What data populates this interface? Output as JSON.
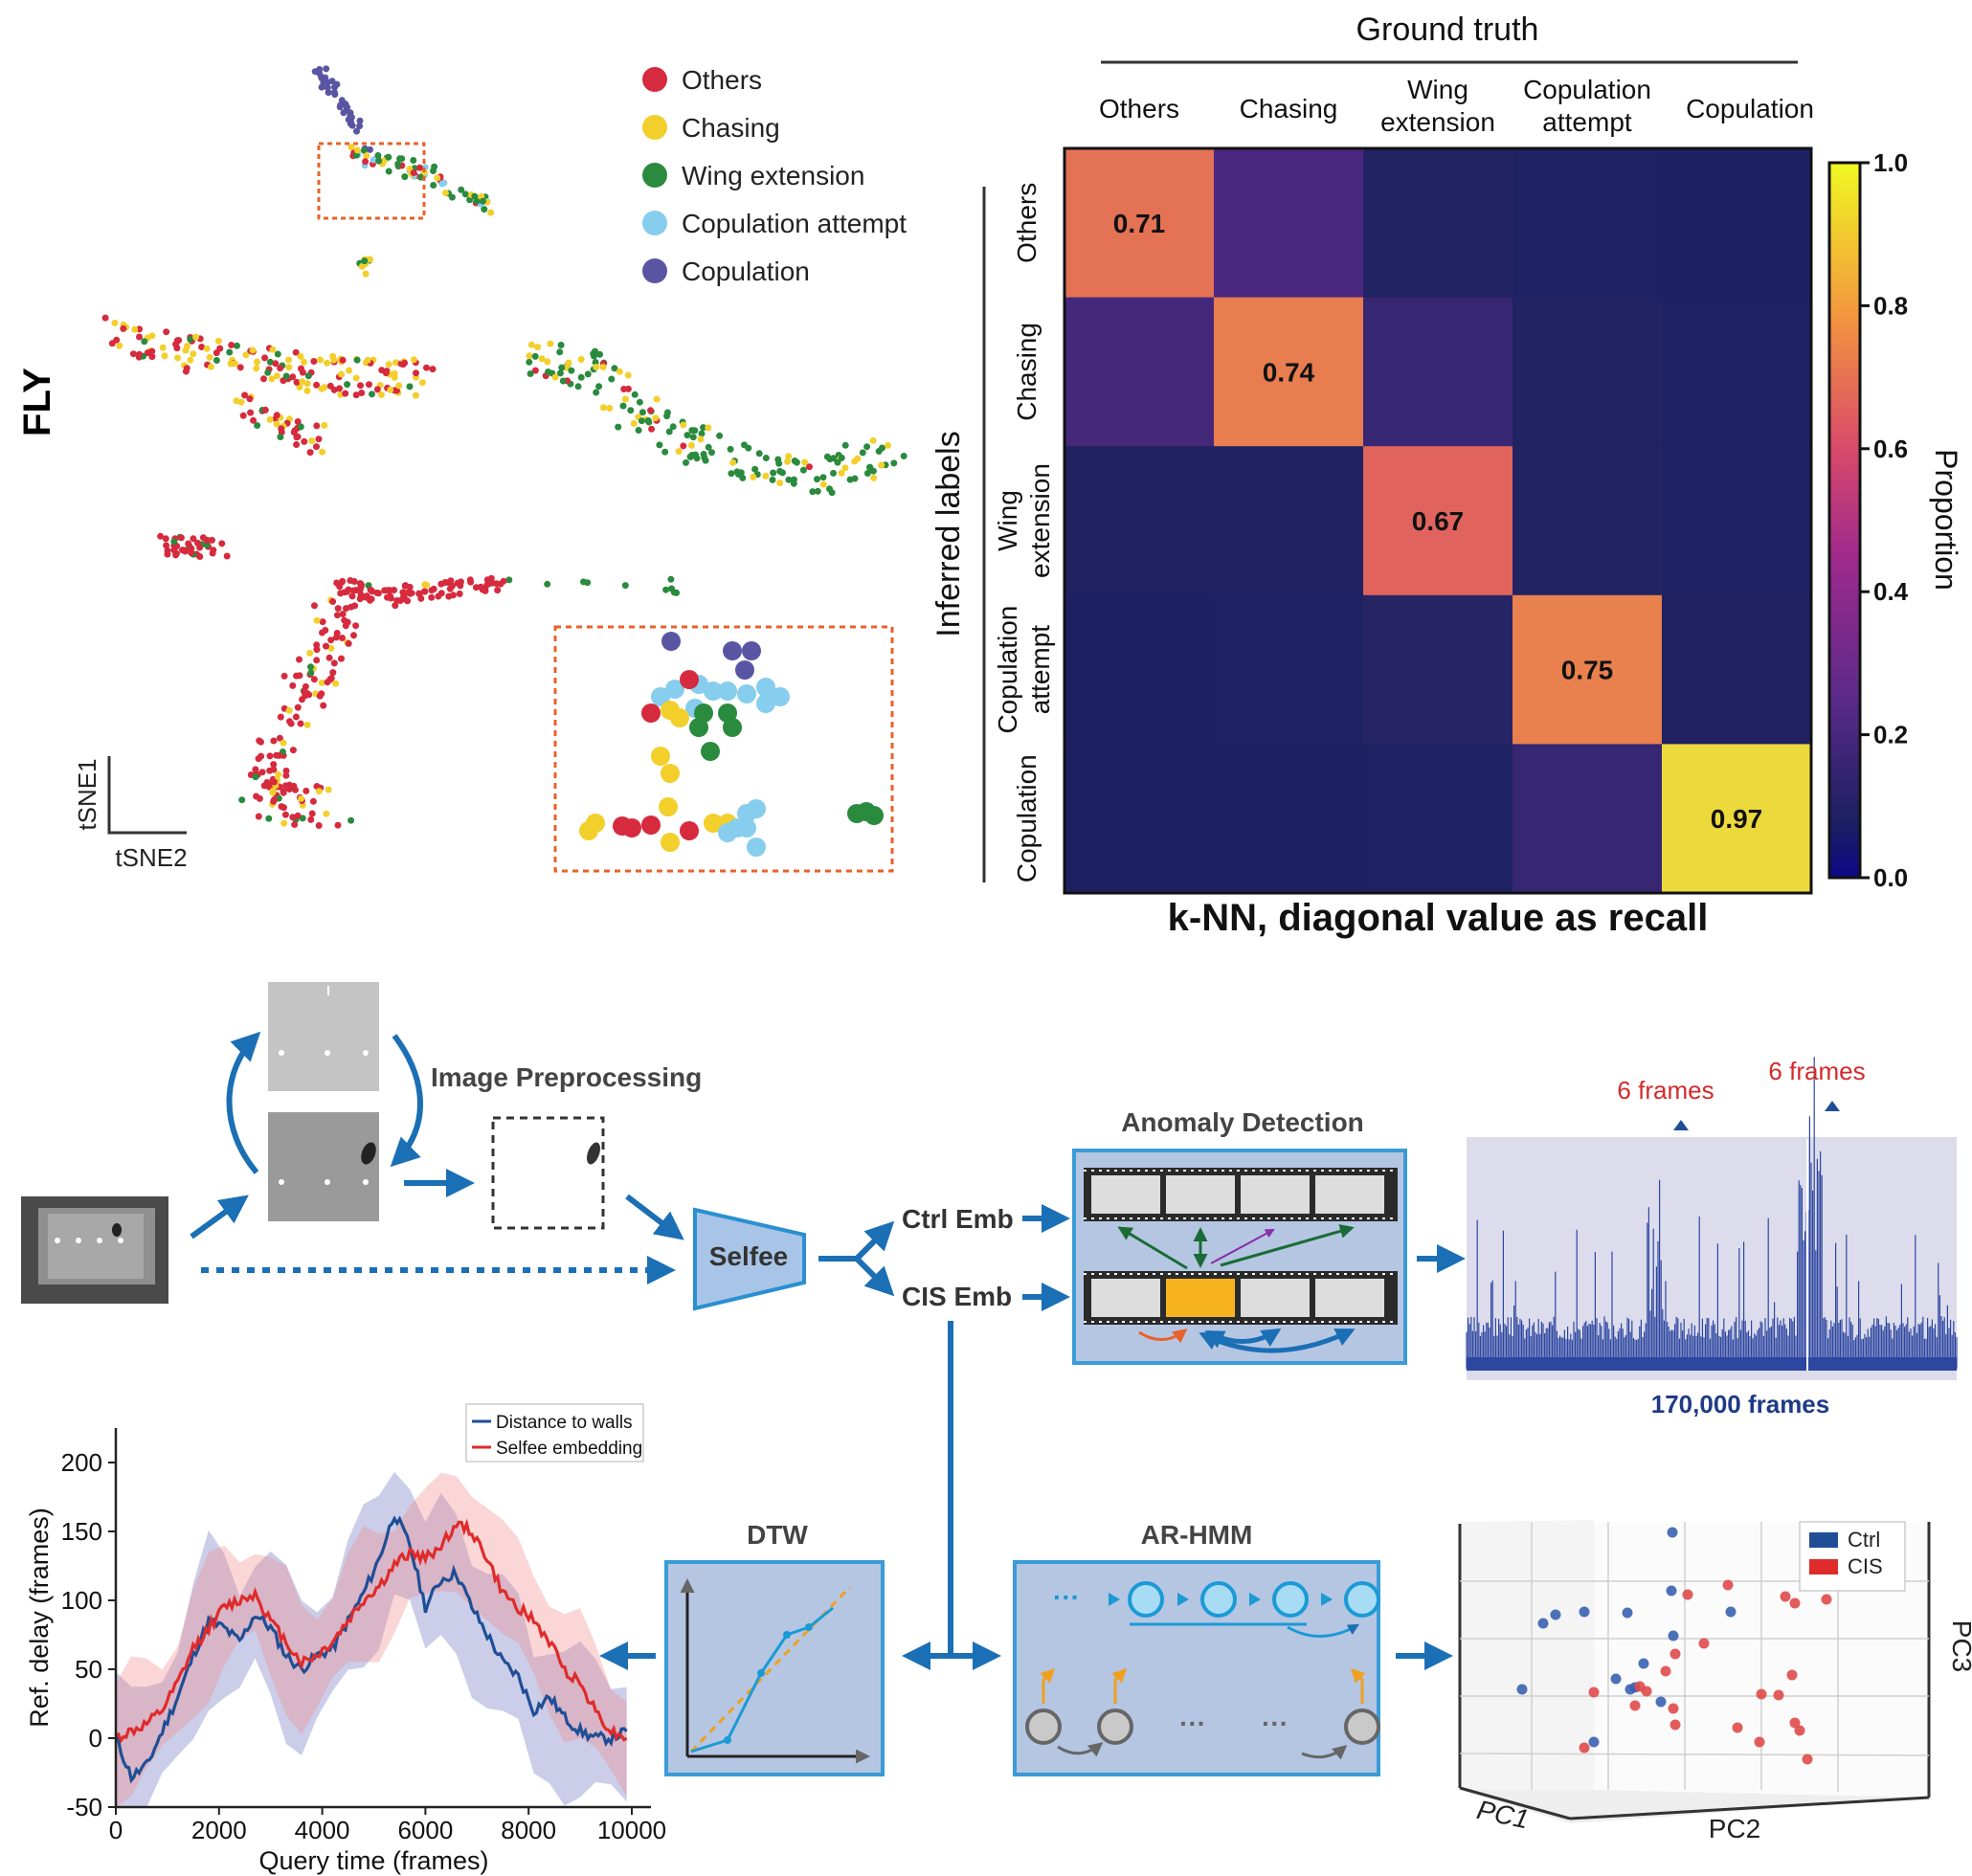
{
  "fly": {
    "label": "FLY",
    "legend": [
      {
        "label": "Others",
        "color": "#d62a3e"
      },
      {
        "label": "Chasing",
        "color": "#f3cf2c"
      },
      {
        "label": "Wing extension",
        "color": "#2a8a3e"
      },
      {
        "label": "Copulation attempt",
        "color": "#87cdee"
      },
      {
        "label": "Copulation",
        "color": "#5a55a3"
      }
    ],
    "axis_y": "tSNE1",
    "axis_x": "tSNE2"
  },
  "confusion": {
    "title": "Ground truth",
    "ylabel": "Inferred labels",
    "caption": "k-NN, diagonal value as recall",
    "col_labels": [
      [
        "Others"
      ],
      [
        "Chasing"
      ],
      [
        "Wing",
        "extension"
      ],
      [
        "Copulation",
        "attempt"
      ],
      [
        "Copulation"
      ]
    ],
    "row_labels": [
      [
        "Others"
      ],
      [
        "Chasing"
      ],
      [
        "Wing",
        "extension"
      ],
      [
        "Copulation",
        "attempt"
      ],
      [
        "Copulation"
      ]
    ],
    "diagonal_labels": [
      "0.71",
      "0.74",
      "0.67",
      "0.75",
      "0.97"
    ],
    "colorbar_label": "Proportion",
    "colorbar_ticks": [
      "0.0",
      "0.2",
      "0.4",
      "0.6",
      "0.8",
      "1.0"
    ]
  },
  "chart_data": [
    {
      "type": "heatmap",
      "title": "Ground truth",
      "xlabel": "Ground truth",
      "ylabel": "Inferred labels",
      "categories": [
        "Others",
        "Chasing",
        "Wing extension",
        "Copulation attempt",
        "Copulation"
      ],
      "values": [
        [
          0.71,
          0.2,
          0.06,
          0.03,
          0.02
        ],
        [
          0.18,
          0.74,
          0.14,
          0.05,
          0.03
        ],
        [
          0.04,
          0.04,
          0.67,
          0.05,
          0.03
        ],
        [
          0.02,
          0.03,
          0.09,
          0.75,
          0.04
        ],
        [
          0.02,
          0.02,
          0.03,
          0.14,
          0.97
        ]
      ],
      "zlim": [
        0,
        1
      ]
    },
    {
      "type": "line",
      "xlabel": "Query time (frames)",
      "ylabel": "Ref. delay (frames)",
      "xlim": [
        0,
        10000
      ],
      "ylim": [
        -50,
        225
      ],
      "xticks": [
        "0",
        "2000",
        "4000",
        "6000",
        "8000",
        "10000"
      ],
      "yticks": [
        "-50",
        "0",
        "50",
        "100",
        "150",
        "200"
      ],
      "x": [
        0,
        300,
        600,
        900,
        1200,
        1500,
        1800,
        2100,
        2400,
        2700,
        3000,
        3300,
        3600,
        3900,
        4200,
        4500,
        4800,
        5100,
        5400,
        5700,
        6000,
        6300,
        6600,
        6900,
        7200,
        7500,
        7800,
        8100,
        8400,
        8700,
        9000,
        9300,
        9600,
        9900
      ],
      "series": [
        {
          "name": "Distance to walls",
          "color": "#1f4e96",
          "values": [
            0,
            -28,
            -20,
            5,
            30,
            60,
            85,
            80,
            70,
            90,
            80,
            60,
            50,
            60,
            65,
            85,
            105,
            130,
            163,
            140,
            95,
            115,
            120,
            95,
            75,
            55,
            45,
            20,
            30,
            15,
            5,
            0,
            0,
            5
          ],
          "band": 40
        },
        {
          "name": "Selfee embedding",
          "color": "#e02b2b",
          "values": [
            0,
            5,
            10,
            20,
            40,
            65,
            80,
            95,
            100,
            105,
            85,
            70,
            55,
            60,
            70,
            85,
            100,
            110,
            125,
            135,
            130,
            140,
            155,
            150,
            130,
            105,
            95,
            85,
            70,
            50,
            40,
            20,
            5,
            0
          ],
          "band": 40
        }
      ]
    }
  ],
  "pipeline": {
    "image_preprocessing": "Image Preprocessing",
    "selfee": "Selfee",
    "ctrl_emb": "Ctrl Emb",
    "cis_emb": "CIS Emb",
    "anomaly_detection": "Anomaly Detection",
    "frames_label_1": "6 frames",
    "frames_label_2": "6 frames",
    "frames_total": "170,000 frames",
    "dtw": "DTW",
    "arhmm": "AR-HMM",
    "legend_ctrl": "Ctrl",
    "legend_cis": "CIS",
    "pc1": "PC1",
    "pc2": "PC2",
    "pc3": "PC3"
  },
  "colors": {
    "blue_arrow": "#1b6fb5",
    "panel_fill": "#b5c6e3",
    "panel_stroke": "#3a9bd6",
    "orange_dotted": "#e8622a",
    "ctrl": "#1f4e96",
    "cis": "#e02b2b"
  }
}
